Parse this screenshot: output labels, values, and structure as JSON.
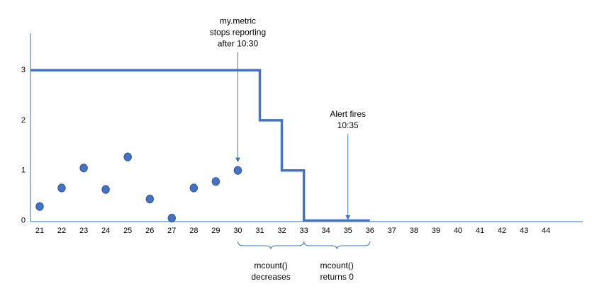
{
  "chart_data": {
    "type": "line",
    "title": "",
    "xlabel": "",
    "ylabel": "",
    "xlim": [
      20.6,
      46
    ],
    "ylim": [
      0,
      3.55
    ],
    "grid": false,
    "legend": "none",
    "x_ticks": [
      "21",
      "22",
      "23",
      "24",
      "25",
      "26",
      "27",
      "28",
      "29",
      "30",
      "31",
      "32",
      "33",
      "34",
      "35",
      "36",
      "37",
      "38",
      "39",
      "40",
      "41",
      "42",
      "43",
      "44"
    ],
    "y_ticks": [
      "0",
      "1",
      "2",
      "3"
    ],
    "series": [
      {
        "kind": "step",
        "color": "#4472c4",
        "points": [
          [
            20.6,
            3
          ],
          [
            31,
            3
          ],
          [
            31,
            2
          ],
          [
            32,
            2
          ],
          [
            32,
            1
          ],
          [
            33,
            1
          ],
          [
            33,
            0
          ],
          [
            36,
            0
          ]
        ]
      },
      {
        "kind": "scatter",
        "color": "#4472c4",
        "points": [
          [
            21,
            0.28
          ],
          [
            22,
            0.65
          ],
          [
            23,
            1.05
          ],
          [
            24,
            0.62
          ],
          [
            25,
            1.27
          ],
          [
            26,
            0.43
          ],
          [
            27,
            0.05
          ],
          [
            28,
            0.65
          ],
          [
            29,
            0.78
          ],
          [
            30,
            1.0
          ]
        ]
      }
    ],
    "annotations": [
      {
        "id": "stops-reporting",
        "lines": [
          "my.metric",
          "stops reporting",
          "after 10:30"
        ],
        "x": 30,
        "arrow_from_y": 3.36,
        "arrow_to_y": 1.17
      },
      {
        "id": "alert-fires",
        "lines": [
          "Alert fires",
          "10:35"
        ],
        "x": 35,
        "arrow_from_y": 1.73,
        "arrow_to_y": 0.02
      }
    ],
    "braces": [
      {
        "id": "decreases",
        "x_from": 30,
        "x_to": 33,
        "lines": [
          "mcount()",
          "decreases"
        ]
      },
      {
        "id": "returns-zero",
        "x_from": 33,
        "x_to": 36,
        "lines": [
          "mcount()",
          "returns 0"
        ]
      }
    ],
    "colors": {
      "accent": "#4472c4",
      "axis": "#2e75b6",
      "text": "#000000",
      "arrow": "#4472c4"
    }
  }
}
